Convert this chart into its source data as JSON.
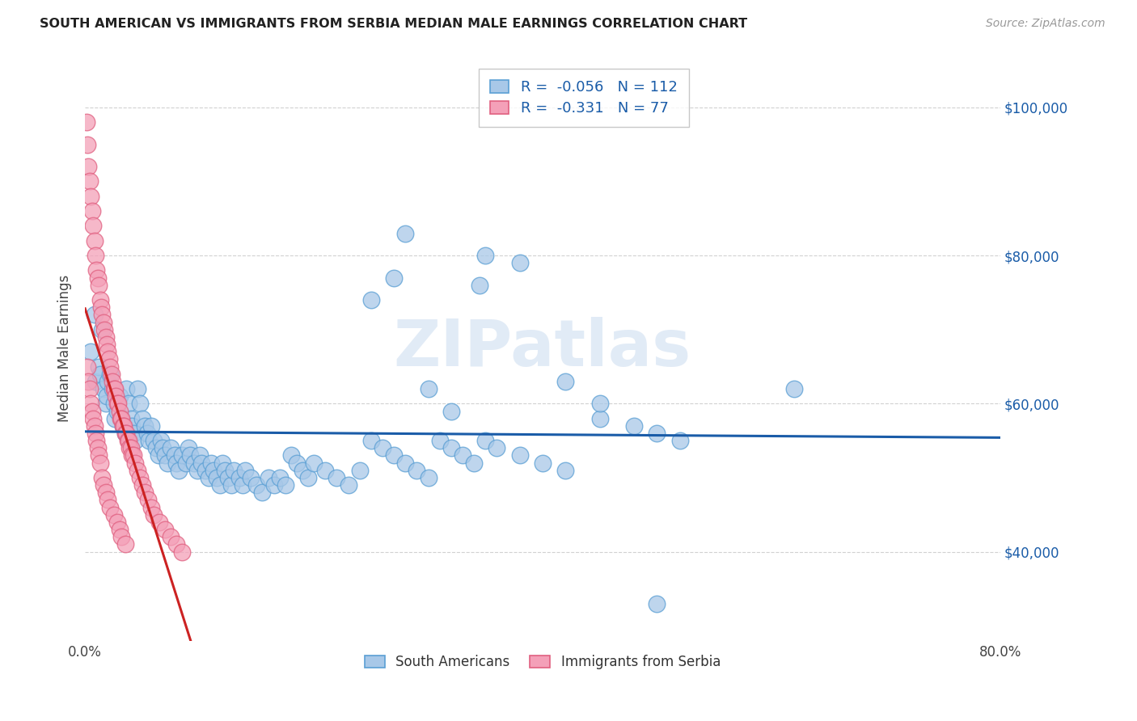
{
  "title": "SOUTH AMERICAN VS IMMIGRANTS FROM SERBIA MEDIAN MALE EARNINGS CORRELATION CHART",
  "source": "Source: ZipAtlas.com",
  "ylabel": "Median Male Earnings",
  "legend_bottom": [
    "South Americans",
    "Immigrants from Serbia"
  ],
  "blue_R": -0.056,
  "blue_N": 112,
  "pink_R": -0.331,
  "pink_N": 77,
  "blue_color": "#a8c8e8",
  "pink_color": "#f4a0b8",
  "blue_edge": "#5a9fd4",
  "pink_edge": "#e06080",
  "trend_blue": "#1a5ca8",
  "trend_pink": "#cc2222",
  "watermark": "ZIPatlas",
  "xmin": 0.0,
  "xmax": 0.8,
  "ymin": 28000,
  "ymax": 107000,
  "yticks": [
    40000,
    60000,
    80000,
    100000
  ],
  "ytick_labels": [
    "$40,000",
    "$60,000",
    "$80,000",
    "$100,000"
  ],
  "xticks": [
    0.0,
    0.1,
    0.2,
    0.3,
    0.4,
    0.5,
    0.6,
    0.7,
    0.8
  ],
  "xtick_labels": [
    "0.0%",
    "",
    "",
    "",
    "",
    "",
    "",
    "",
    "80.0%"
  ],
  "blue_scatter_x": [
    0.005,
    0.008,
    0.009,
    0.012,
    0.013,
    0.015,
    0.016,
    0.018,
    0.019,
    0.02,
    0.022,
    0.024,
    0.025,
    0.026,
    0.028,
    0.03,
    0.032,
    0.033,
    0.035,
    0.036,
    0.038,
    0.04,
    0.041,
    0.042,
    0.044,
    0.046,
    0.048,
    0.05,
    0.052,
    0.054,
    0.056,
    0.058,
    0.06,
    0.062,
    0.064,
    0.066,
    0.068,
    0.07,
    0.072,
    0.075,
    0.078,
    0.08,
    0.082,
    0.085,
    0.088,
    0.09,
    0.092,
    0.095,
    0.098,
    0.1,
    0.102,
    0.105,
    0.108,
    0.11,
    0.112,
    0.115,
    0.118,
    0.12,
    0.122,
    0.125,
    0.128,
    0.13,
    0.135,
    0.138,
    0.14,
    0.145,
    0.15,
    0.155,
    0.16,
    0.165,
    0.17,
    0.175,
    0.18,
    0.185,
    0.19,
    0.195,
    0.2,
    0.21,
    0.22,
    0.23,
    0.24,
    0.25,
    0.26,
    0.27,
    0.28,
    0.29,
    0.3,
    0.31,
    0.32,
    0.33,
    0.34,
    0.35,
    0.36,
    0.38,
    0.4,
    0.42,
    0.45,
    0.48,
    0.5,
    0.52,
    0.35,
    0.28,
    0.38,
    0.27,
    0.3,
    0.32,
    0.345,
    0.25,
    0.42,
    0.45,
    0.5,
    0.62
  ],
  "blue_scatter_y": [
    67000,
    72000,
    63000,
    65000,
    64000,
    70000,
    62000,
    60000,
    61000,
    63000,
    64000,
    62000,
    60000,
    58000,
    59000,
    61000,
    58000,
    57000,
    56000,
    62000,
    60000,
    58000,
    57000,
    56000,
    55000,
    62000,
    60000,
    58000,
    57000,
    56000,
    55000,
    57000,
    55000,
    54000,
    53000,
    55000,
    54000,
    53000,
    52000,
    54000,
    53000,
    52000,
    51000,
    53000,
    52000,
    54000,
    53000,
    52000,
    51000,
    53000,
    52000,
    51000,
    50000,
    52000,
    51000,
    50000,
    49000,
    52000,
    51000,
    50000,
    49000,
    51000,
    50000,
    49000,
    51000,
    50000,
    49000,
    48000,
    50000,
    49000,
    50000,
    49000,
    53000,
    52000,
    51000,
    50000,
    52000,
    51000,
    50000,
    49000,
    51000,
    55000,
    54000,
    53000,
    52000,
    51000,
    50000,
    55000,
    54000,
    53000,
    52000,
    55000,
    54000,
    53000,
    52000,
    51000,
    58000,
    57000,
    56000,
    55000,
    80000,
    83000,
    79000,
    77000,
    62000,
    59000,
    76000,
    74000,
    63000,
    60000,
    33000,
    62000
  ],
  "pink_scatter_x": [
    0.001,
    0.002,
    0.003,
    0.004,
    0.005,
    0.006,
    0.007,
    0.008,
    0.009,
    0.01,
    0.011,
    0.012,
    0.013,
    0.014,
    0.015,
    0.016,
    0.017,
    0.018,
    0.019,
    0.02,
    0.021,
    0.022,
    0.023,
    0.024,
    0.025,
    0.026,
    0.027,
    0.028,
    0.029,
    0.03,
    0.031,
    0.032,
    0.033,
    0.034,
    0.035,
    0.036,
    0.037,
    0.038,
    0.039,
    0.04,
    0.041,
    0.042,
    0.044,
    0.046,
    0.048,
    0.05,
    0.052,
    0.055,
    0.058,
    0.06,
    0.065,
    0.07,
    0.075,
    0.08,
    0.085,
    0.002,
    0.003,
    0.004,
    0.005,
    0.006,
    0.007,
    0.008,
    0.009,
    0.01,
    0.011,
    0.012,
    0.013,
    0.015,
    0.016,
    0.018,
    0.02,
    0.022,
    0.025,
    0.028,
    0.03,
    0.032,
    0.035
  ],
  "pink_scatter_y": [
    98000,
    95000,
    92000,
    90000,
    88000,
    86000,
    84000,
    82000,
    80000,
    78000,
    77000,
    76000,
    74000,
    73000,
    72000,
    71000,
    70000,
    69000,
    68000,
    67000,
    66000,
    65000,
    64000,
    63000,
    62000,
    62000,
    61000,
    60000,
    60000,
    59000,
    58000,
    58000,
    57000,
    57000,
    56000,
    56000,
    55000,
    55000,
    54000,
    54000,
    53000,
    53000,
    52000,
    51000,
    50000,
    49000,
    48000,
    47000,
    46000,
    45000,
    44000,
    43000,
    42000,
    41000,
    40000,
    65000,
    63000,
    62000,
    60000,
    59000,
    58000,
    57000,
    56000,
    55000,
    54000,
    53000,
    52000,
    50000,
    49000,
    48000,
    47000,
    46000,
    45000,
    44000,
    43000,
    42000,
    41000
  ]
}
